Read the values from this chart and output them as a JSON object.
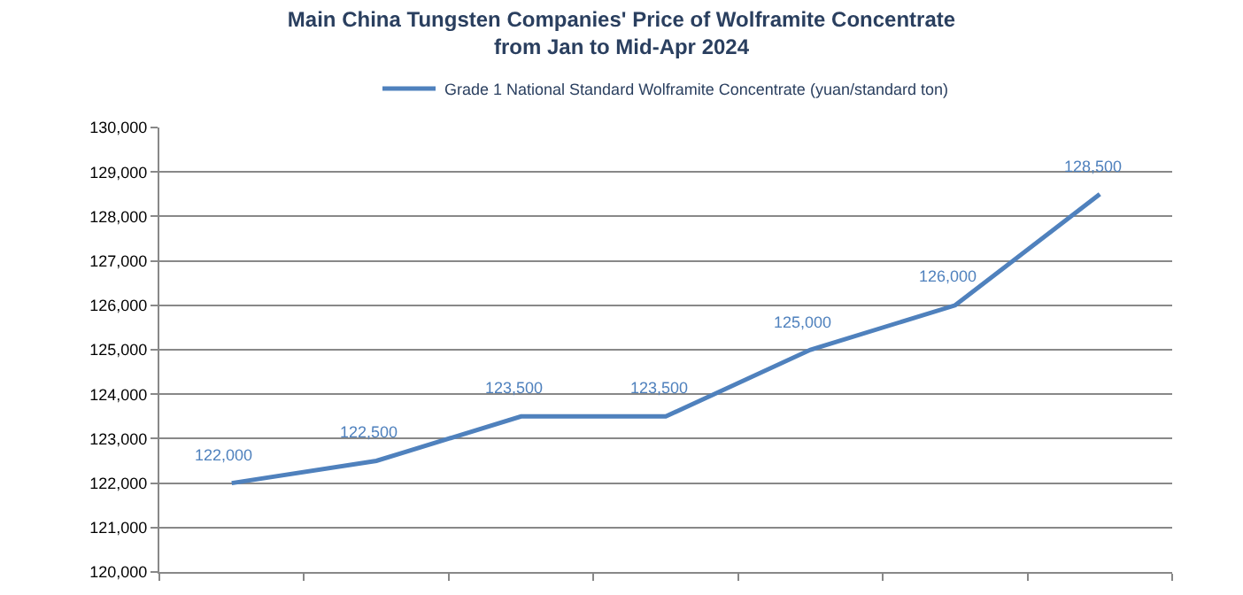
{
  "chart_data": {
    "type": "line",
    "title": "Main China Tungsten Companies' Price of Wolframite Concentrate\nfrom Jan to Mid-Apr 2024",
    "categories": [
      null,
      null,
      null,
      null,
      null,
      null,
      null
    ],
    "series": [
      {
        "name": "Grade 1 National Standard Wolframite Concentrate (yuan/standard ton)",
        "color": "#4f81bd",
        "values": [
          122000,
          122500,
          123500,
          123500,
          125000,
          126000,
          128500
        ],
        "value_labels": [
          "122,000",
          "122,500",
          "123,500",
          "123,500",
          "125,000",
          "126,000",
          "128,500"
        ]
      }
    ],
    "ylim": [
      120000,
      130000
    ],
    "yticks": [
      {
        "value": 120000,
        "label": "120,000"
      },
      {
        "value": 121000,
        "label": "121,000"
      },
      {
        "value": 122000,
        "label": "122,000"
      },
      {
        "value": 123000,
        "label": "123,000"
      },
      {
        "value": 124000,
        "label": "124,000"
      },
      {
        "value": 125000,
        "label": "125,000"
      },
      {
        "value": 126000,
        "label": "126,000"
      },
      {
        "value": 127000,
        "label": "127,000"
      },
      {
        "value": 128000,
        "label": "128,000"
      },
      {
        "value": 129000,
        "label": "129,000"
      },
      {
        "value": 130000,
        "label": "130,000"
      }
    ],
    "grid": "y",
    "legend": "top",
    "marker": "none",
    "line_style": "solid"
  }
}
